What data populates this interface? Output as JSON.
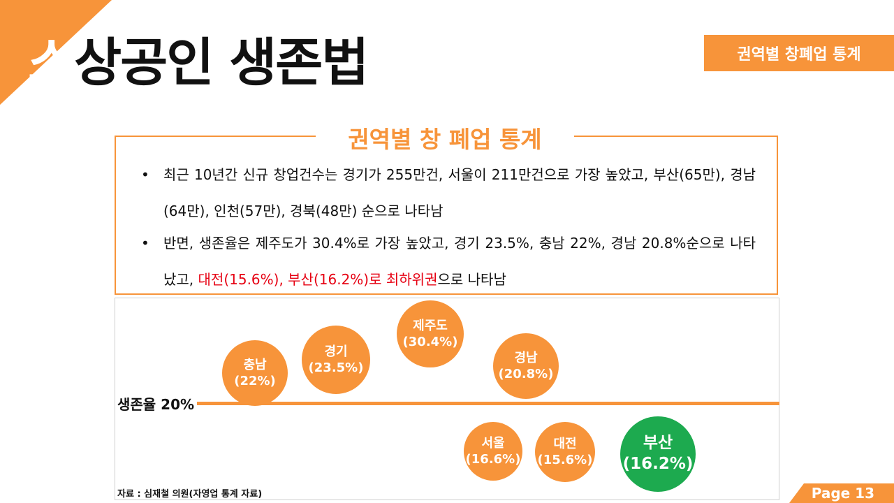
{
  "header": {
    "title_first": "소",
    "title_rest": "상공인 생존법",
    "badge": "권역별 창폐업 통계"
  },
  "summary": {
    "title": "권역별 창 폐업 통계",
    "bullet_symbol": "•",
    "bullet1": "최근 10년간 신규 창업건수는 경기가 255만건, 서울이 211만건으로 가장 높았고, 부산(65만), 경남(64만), 인천(57만), 경북(48만) 순으로 나타남",
    "bullet2_pre": "반면, 생존율은 제주도가 30.4%로 가장 높았고, 경기 23.5%, 충남 22%, 경남 20.8%순으로 나타났고, ",
    "bullet2_highlight": "대전(15.6%), 부산(16.2%)로 최하위권",
    "bullet2_post": "으로 나타남"
  },
  "chart": {
    "baseline_label": "생존율 20%",
    "bubbles": [
      {
        "region": "충남",
        "value": "(22%)"
      },
      {
        "region": "경기",
        "value": "(23.5%)"
      },
      {
        "region": "제주도",
        "value": "(30.4%)"
      },
      {
        "region": "경남",
        "value": "(20.8%)"
      },
      {
        "region": "서울",
        "value": "(16.6%)"
      },
      {
        "region": "대전",
        "value": "(15.6%)"
      },
      {
        "region": "부산",
        "value": "(16.2%)"
      }
    ],
    "colors": {
      "above": "#F7943A",
      "lowest": "#1DAA4F"
    }
  },
  "source": "자료 : 심재철 의원(자영업 통계 자료)",
  "page": "Page 13"
}
